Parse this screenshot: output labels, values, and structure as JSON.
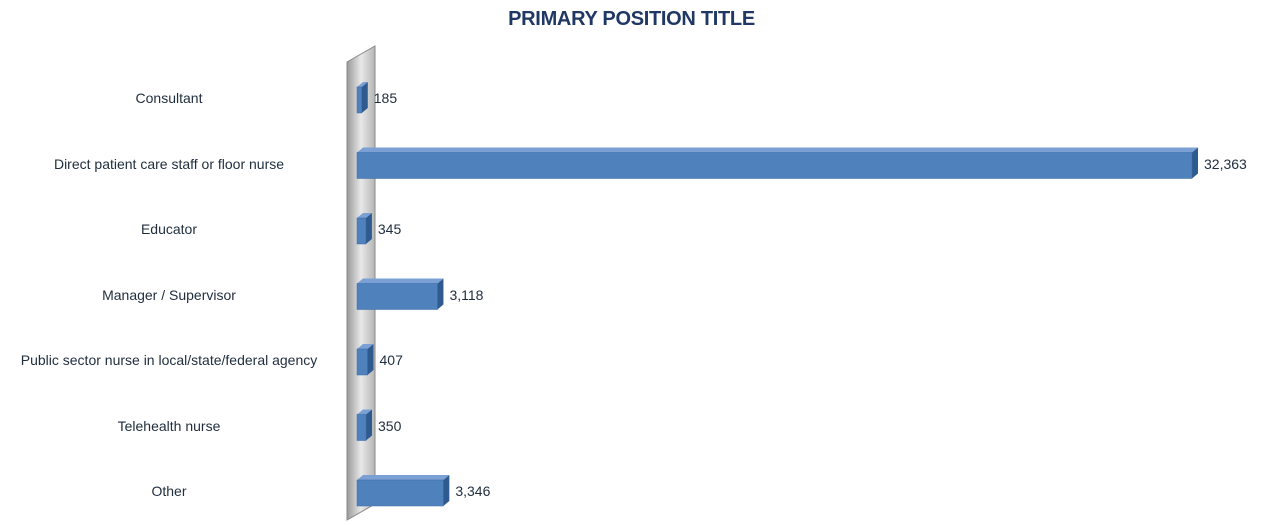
{
  "chart_data": {
    "type": "bar",
    "orientation": "horizontal",
    "title": "PRIMARY POSITION TITLE",
    "categories": [
      "Consultant",
      "Direct patient care staff or floor nurse",
      "Educator",
      "Manager / Supervisor",
      "Public sector nurse in local/state/federal agency",
      "Telehealth nurse",
      "Other"
    ],
    "values": [
      185,
      32363,
      345,
      3118,
      407,
      350,
      3346
    ],
    "value_labels": [
      "185",
      "32,363",
      "345",
      "3,118",
      "407",
      "350",
      "3,346"
    ],
    "color": "#4f81bd"
  }
}
